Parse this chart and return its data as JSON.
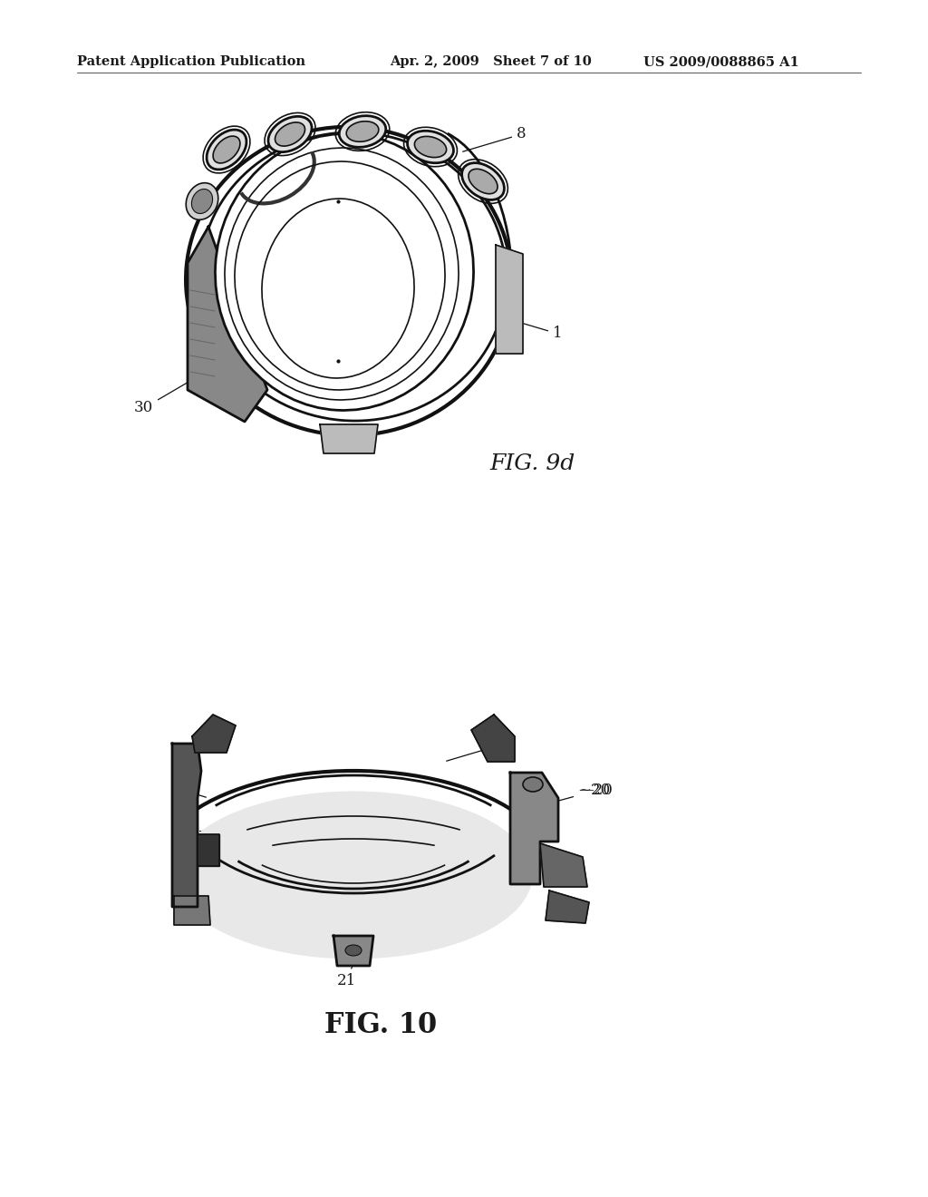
{
  "background_color": "#ffffff",
  "header_left": "Patent Application Publication",
  "header_center": "Apr. 2, 2009   Sheet 7 of 10",
  "header_right": "US 2009/0088865 A1",
  "fig1_label": "FIG. 9d",
  "fig2_label": "FIG. 10",
  "text_color": "#1a1a1a",
  "line_color": "#111111",
  "header_fontsize": 10.5,
  "label_fontsize": 12,
  "fig_label_fontsize": 18
}
